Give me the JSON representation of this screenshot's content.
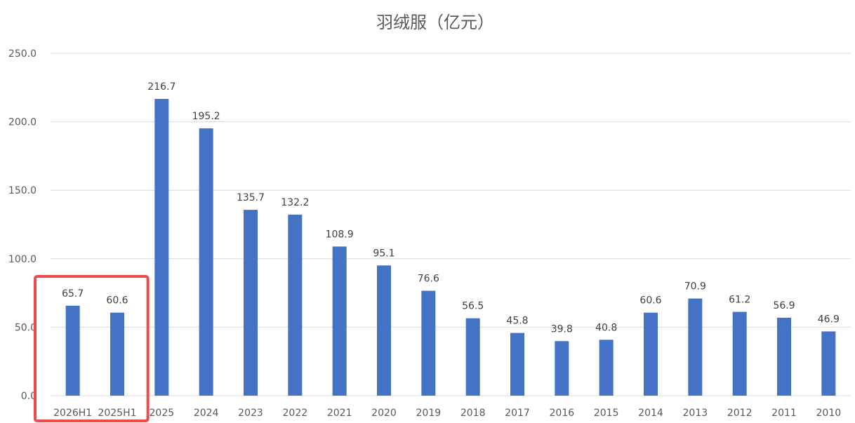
{
  "chart_data": {
    "type": "bar",
    "title": "羽绒服（亿元）",
    "categories": [
      "2026H1",
      "2025H1",
      "2025",
      "2024",
      "2023",
      "2022",
      "2021",
      "2020",
      "2019",
      "2018",
      "2017",
      "2016",
      "2015",
      "2014",
      "2013",
      "2012",
      "2011",
      "2010"
    ],
    "values": [
      65.7,
      60.6,
      216.7,
      195.2,
      135.7,
      132.2,
      108.9,
      95.1,
      76.6,
      56.5,
      45.8,
      39.8,
      40.8,
      60.6,
      70.9,
      61.2,
      56.9,
      46.9
    ],
    "ylim": [
      0,
      250
    ],
    "yticks": [
      "0.0",
      "50.0",
      "100.0",
      "150.0",
      "200.0",
      "250.0"
    ],
    "xlabel": "",
    "ylabel": "",
    "grid": true,
    "legend": "none",
    "data_labels": true,
    "highlight": {
      "categories": [
        "2026H1",
        "2025H1"
      ],
      "color": "#f04b4b"
    },
    "colors": {
      "bar": "#4472c4",
      "grid": "#d9d9d9"
    }
  }
}
